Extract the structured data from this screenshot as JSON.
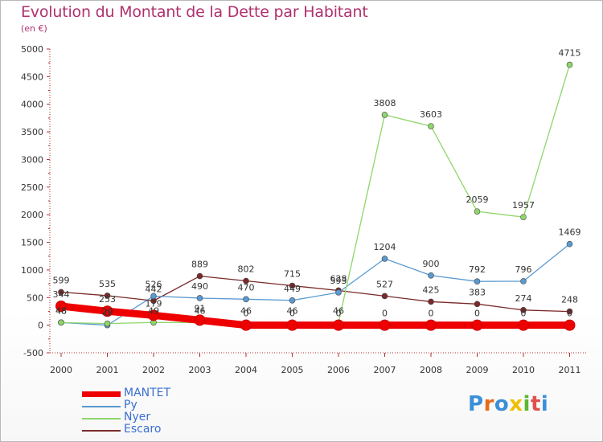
{
  "header": {
    "title": "Evolution du Montant de la Dette par Habitant",
    "unit": "(en €)"
  },
  "logo": {
    "text": "Proxiti",
    "colors": [
      "#3a8fd8",
      "#e86b1a",
      "#3a8fd8",
      "#f0c000",
      "#5cb82c",
      "#e05050",
      "#3a8fd8"
    ]
  },
  "chart_data": {
    "type": "line",
    "title": "Evolution du Montant de la Dette par Habitant",
    "ylabel": "(en €)",
    "xlabel": "",
    "ylim": [
      -500,
      5000
    ],
    "yticks": [
      -500,
      0,
      500,
      1000,
      1500,
      2000,
      2500,
      3000,
      3500,
      4000,
      4500,
      5000
    ],
    "grid": false,
    "legend": "bottom-left",
    "categories": [
      "2000",
      "2001",
      "2002",
      "2003",
      "2004",
      "2005",
      "2006",
      "2007",
      "2008",
      "2009",
      "2010",
      "2011"
    ],
    "series": [
      {
        "name": "MANTET",
        "color": "#ee0000",
        "values": [
          344,
          253,
          179,
          91,
          0,
          0,
          0,
          0,
          0,
          0,
          0,
          0
        ],
        "labels": [
          "344",
          "253",
          "179",
          "91",
          "0",
          "0",
          "0",
          "0",
          "0",
          "0",
          "0",
          "0"
        ]
      },
      {
        "name": "Py",
        "color": "#5a9ad0",
        "values": [
          48,
          0,
          526,
          490,
          470,
          449,
          593,
          1204,
          900,
          792,
          796,
          1469
        ],
        "labels": [
          "48",
          "0",
          "526",
          "490",
          "470",
          "449",
          "593",
          "1204",
          "900",
          "792",
          "796",
          "1469"
        ]
      },
      {
        "name": "Nyer",
        "color": "#8ed66a",
        "values": [
          48,
          29,
          49,
          46,
          46,
          46,
          46,
          3808,
          3603,
          2059,
          1957,
          4715
        ],
        "labels": [
          "48",
          "29",
          "49",
          "46",
          "46",
          "46",
          "46",
          "3808",
          "3603",
          "2059",
          "1957",
          "4715"
        ]
      },
      {
        "name": "Escaro",
        "color": "#7a2a2a",
        "values": [
          599,
          535,
          442,
          889,
          802,
          715,
          628,
          527,
          425,
          383,
          274,
          248
        ],
        "labels": [
          "599",
          "535",
          "442",
          "889",
          "802",
          "715",
          "628",
          "527",
          "425",
          "383",
          "274",
          "248"
        ]
      }
    ]
  }
}
